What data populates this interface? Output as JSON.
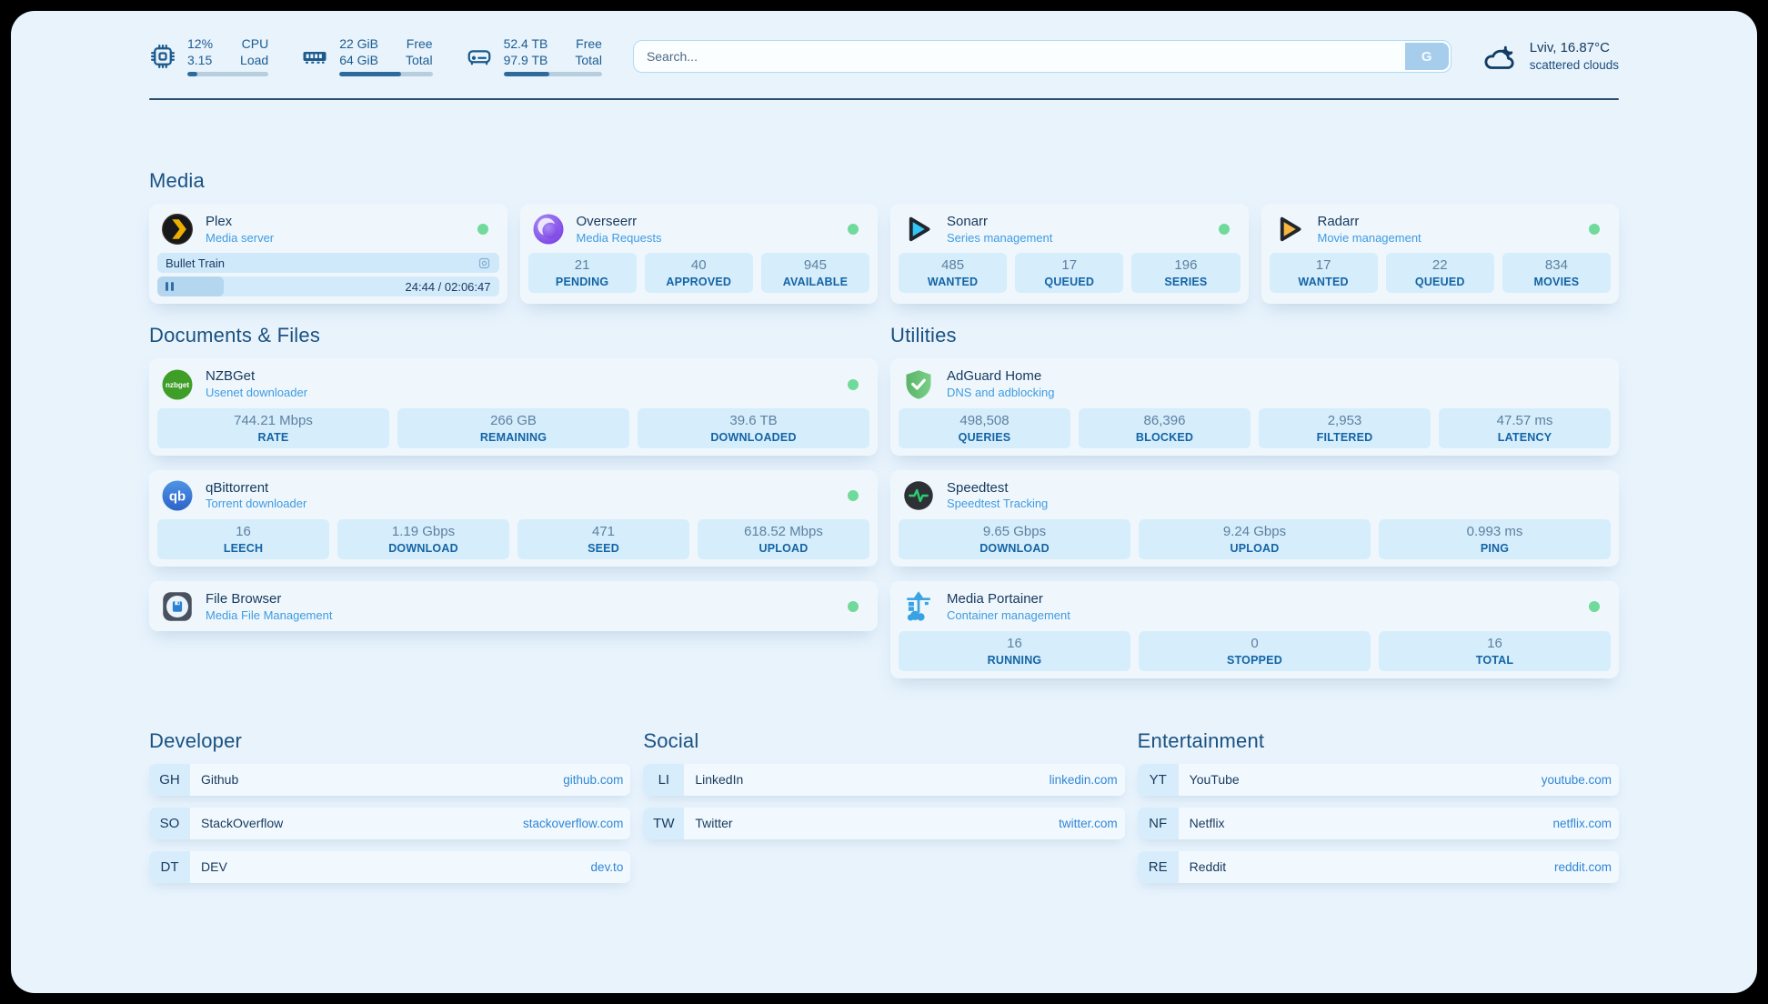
{
  "topbar": {
    "cpu": {
      "line1_value": "12%",
      "line2_value": "3.15",
      "line1_label": "CPU",
      "line2_label": "Load",
      "progress_pct": 12
    },
    "ram": {
      "line1_value": "22 GiB",
      "line2_value": "64 GiB",
      "line1_label": "Free",
      "line2_label": "Total",
      "progress_pct": 66
    },
    "disk": {
      "line1_value": "52.4 TB",
      "line2_value": "97.9 TB",
      "line1_label": "Free",
      "line2_label": "Total",
      "progress_pct": 46.5
    },
    "search": {
      "placeholder": "Search...",
      "button": "G"
    },
    "weather": {
      "title": "Lviv, 16.87°C",
      "subtitle": "scattered clouds"
    }
  },
  "sections": {
    "media": {
      "title": "Media",
      "plex": {
        "name": "Plex",
        "subtitle": "Media server",
        "now_playing": "Bullet Train",
        "time": "24:44 / 02:06:47",
        "progress_pct": 19.5
      },
      "cards": [
        {
          "name": "Overseerr",
          "subtitle": "Media Requests",
          "stats": [
            {
              "value": "21",
              "label": "PENDING"
            },
            {
              "value": "40",
              "label": "APPROVED"
            },
            {
              "value": "945",
              "label": "AVAILABLE"
            }
          ]
        },
        {
          "name": "Sonarr",
          "subtitle": "Series management",
          "stats": [
            {
              "value": "485",
              "label": "WANTED"
            },
            {
              "value": "17",
              "label": "QUEUED"
            },
            {
              "value": "196",
              "label": "SERIES"
            }
          ]
        },
        {
          "name": "Radarr",
          "subtitle": "Movie management",
          "stats": [
            {
              "value": "17",
              "label": "WANTED"
            },
            {
              "value": "22",
              "label": "QUEUED"
            },
            {
              "value": "834",
              "label": "MOVIES"
            }
          ]
        }
      ]
    },
    "documents": {
      "title": "Documents & Files",
      "cards": [
        {
          "name": "NZBGet",
          "subtitle": "Usenet downloader",
          "stats": [
            {
              "value": "744.21 Mbps",
              "label": "RATE"
            },
            {
              "value": "266 GB",
              "label": "REMAINING"
            },
            {
              "value": "39.6 TB",
              "label": "DOWNLOADED"
            }
          ]
        },
        {
          "name": "qBittorrent",
          "subtitle": "Torrent downloader",
          "stats": [
            {
              "value": "16",
              "label": "LEECH"
            },
            {
              "value": "1.19 Gbps",
              "label": "DOWNLOAD"
            },
            {
              "value": "471",
              "label": "SEED"
            },
            {
              "value": "618.52 Mbps",
              "label": "UPLOAD"
            }
          ]
        },
        {
          "name": "File Browser",
          "subtitle": "Media File Management",
          "stats": []
        }
      ]
    },
    "utilities": {
      "title": "Utilities",
      "cards": [
        {
          "name": "AdGuard Home",
          "subtitle": "DNS and adblocking",
          "stats": [
            {
              "value": "498,508",
              "label": "QUERIES"
            },
            {
              "value": "86,396",
              "label": "BLOCKED"
            },
            {
              "value": "2,953",
              "label": "FILTERED"
            },
            {
              "value": "47.57 ms",
              "label": "LATENCY"
            }
          ]
        },
        {
          "name": "Speedtest",
          "subtitle": "Speedtest Tracking",
          "stats": [
            {
              "value": "9.65 Gbps",
              "label": "DOWNLOAD"
            },
            {
              "value": "9.24 Gbps",
              "label": "UPLOAD"
            },
            {
              "value": "0.993 ms",
              "label": "PING"
            }
          ]
        },
        {
          "name": "Media Portainer",
          "subtitle": "Container management",
          "stats": [
            {
              "value": "16",
              "label": "RUNNING"
            },
            {
              "value": "0",
              "label": "STOPPED"
            },
            {
              "value": "16",
              "label": "TOTAL"
            }
          ]
        }
      ]
    },
    "bookmarks": [
      {
        "title": "Developer",
        "items": [
          {
            "abbr": "GH",
            "name": "Github",
            "url": "github.com"
          },
          {
            "abbr": "SO",
            "name": "StackOverflow",
            "url": "stackoverflow.com"
          },
          {
            "abbr": "DT",
            "name": "DEV",
            "url": "dev.to"
          }
        ]
      },
      {
        "title": "Social",
        "items": [
          {
            "abbr": "LI",
            "name": "LinkedIn",
            "url": "linkedin.com"
          },
          {
            "abbr": "TW",
            "name": "Twitter",
            "url": "twitter.com"
          }
        ]
      },
      {
        "title": "Entertainment",
        "items": [
          {
            "abbr": "YT",
            "name": "YouTube",
            "url": "youtube.com"
          },
          {
            "abbr": "NF",
            "name": "Netflix",
            "url": "netflix.com"
          },
          {
            "abbr": "RE",
            "name": "Reddit",
            "url": "reddit.com"
          }
        ]
      }
    ]
  },
  "colors": {
    "status_online": "#6fda9a",
    "accent_blue": "#2f86d6",
    "subtitle_blue": "#3f9be1"
  }
}
